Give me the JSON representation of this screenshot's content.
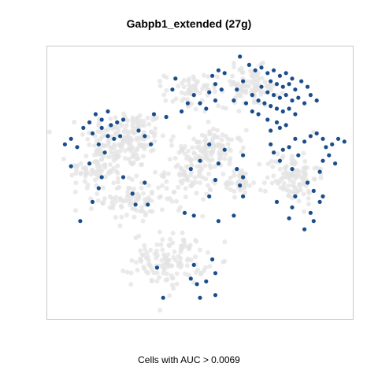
{
  "chart_data": {
    "type": "scatter",
    "title": "Gabpb1_extended (27g)",
    "xlabel": "Cells with AUC > 0.0069",
    "ylabel": "",
    "grid": false,
    "xlim": [
      0,
      100
    ],
    "ylim": [
      0,
      100
    ],
    "background_color": "#e3e3e3",
    "highlight_color": "#1a4e8a",
    "series": [
      {
        "role": "background",
        "clusters": [
          {
            "cx": 26,
            "cy": 66,
            "sx": 11,
            "sy": 9,
            "n": 170
          },
          {
            "cx": 16,
            "cy": 55,
            "sx": 7,
            "sy": 6,
            "n": 70
          },
          {
            "cx": 28,
            "cy": 44,
            "sx": 9,
            "sy": 7,
            "n": 90
          },
          {
            "cx": 47,
            "cy": 55,
            "sx": 7,
            "sy": 10,
            "n": 110
          },
          {
            "cx": 56,
            "cy": 62,
            "sx": 7,
            "sy": 6,
            "n": 70
          },
          {
            "cx": 40,
            "cy": 22,
            "sx": 10,
            "sy": 8,
            "n": 130
          },
          {
            "cx": 47,
            "cy": 83,
            "sx": 7,
            "sy": 6,
            "n": 60
          },
          {
            "cx": 66,
            "cy": 85,
            "sx": 8,
            "sy": 6,
            "n": 90
          },
          {
            "cx": 80,
            "cy": 52,
            "sx": 7,
            "sy": 8,
            "n": 110
          },
          {
            "cx": 63,
            "cy": 50,
            "sx": 4,
            "sy": 4,
            "n": 35
          }
        ]
      },
      {
        "role": "highlighted",
        "points": [
          [
            63,
            96
          ],
          [
            66,
            93
          ],
          [
            68,
            91
          ],
          [
            70,
            92
          ],
          [
            72,
            90
          ],
          [
            74,
            91
          ],
          [
            76,
            89
          ],
          [
            78,
            90
          ],
          [
            80,
            88
          ],
          [
            73,
            87
          ],
          [
            75,
            86
          ],
          [
            77,
            85
          ],
          [
            79,
            86
          ],
          [
            81,
            84
          ],
          [
            83,
            87
          ],
          [
            85,
            85
          ],
          [
            70,
            85
          ],
          [
            72,
            83
          ],
          [
            74,
            82
          ],
          [
            76,
            81
          ],
          [
            78,
            82
          ],
          [
            80,
            80
          ],
          [
            82,
            81
          ],
          [
            84,
            79
          ],
          [
            86,
            82
          ],
          [
            88,
            80
          ],
          [
            67,
            82
          ],
          [
            69,
            80
          ],
          [
            71,
            79
          ],
          [
            73,
            78
          ],
          [
            75,
            77
          ],
          [
            77,
            76
          ],
          [
            79,
            77
          ],
          [
            81,
            75
          ],
          [
            69,
            75
          ],
          [
            72,
            73
          ],
          [
            75,
            72
          ],
          [
            78,
            71
          ],
          [
            76,
            70
          ],
          [
            64,
            87
          ],
          [
            62,
            84
          ],
          [
            65,
            79
          ],
          [
            61,
            80
          ],
          [
            67,
            76
          ],
          [
            73,
            69
          ],
          [
            56,
            91
          ],
          [
            54,
            89
          ],
          [
            55,
            86
          ],
          [
            58,
            90
          ],
          [
            57,
            84
          ],
          [
            53,
            83
          ],
          [
            55,
            80
          ],
          [
            50,
            79
          ],
          [
            52,
            77
          ],
          [
            42,
            88
          ],
          [
            41,
            84
          ],
          [
            46,
            79
          ],
          [
            44,
            76
          ],
          [
            48,
            82
          ],
          [
            35,
            75
          ],
          [
            30,
            69
          ],
          [
            32,
            67
          ],
          [
            34,
            64
          ],
          [
            20,
            76
          ],
          [
            18,
            73
          ],
          [
            16,
            75
          ],
          [
            14,
            72
          ],
          [
            12,
            70
          ],
          [
            15,
            68
          ],
          [
            18,
            70
          ],
          [
            20,
            67
          ],
          [
            22,
            66
          ],
          [
            24,
            67
          ],
          [
            17,
            64
          ],
          [
            6,
            64
          ],
          [
            8,
            66
          ],
          [
            10,
            63
          ],
          [
            23,
            72
          ],
          [
            25,
            73
          ],
          [
            21,
            71
          ],
          [
            19,
            61
          ],
          [
            14,
            57
          ],
          [
            8,
            56
          ],
          [
            18,
            52
          ],
          [
            17,
            48
          ],
          [
            15,
            43
          ],
          [
            11,
            36
          ],
          [
            25,
            52
          ],
          [
            28,
            46
          ],
          [
            29,
            42
          ],
          [
            33,
            42
          ],
          [
            32,
            50
          ],
          [
            39,
            74
          ],
          [
            53,
            64
          ],
          [
            50,
            58
          ],
          [
            47,
            55
          ],
          [
            48,
            38
          ],
          [
            45,
            39
          ],
          [
            53,
            45
          ],
          [
            55,
            51
          ],
          [
            56,
            57
          ],
          [
            62,
            55
          ],
          [
            64,
            52
          ],
          [
            63,
            49
          ],
          [
            64,
            45
          ],
          [
            58,
            62
          ],
          [
            64,
            60
          ],
          [
            56,
            36
          ],
          [
            61,
            38
          ],
          [
            73,
            64
          ],
          [
            74,
            61
          ],
          [
            76,
            58
          ],
          [
            77,
            62
          ],
          [
            79,
            63
          ],
          [
            80,
            55
          ],
          [
            82,
            60
          ],
          [
            81,
            66
          ],
          [
            84,
            65
          ],
          [
            86,
            67
          ],
          [
            88,
            68
          ],
          [
            90,
            66
          ],
          [
            91,
            63
          ],
          [
            93,
            64
          ],
          [
            95,
            66
          ],
          [
            97,
            65
          ],
          [
            92,
            60
          ],
          [
            90,
            58
          ],
          [
            94,
            57
          ],
          [
            89,
            54
          ],
          [
            85,
            50
          ],
          [
            87,
            47
          ],
          [
            90,
            45
          ],
          [
            86,
            39
          ],
          [
            80,
            41
          ],
          [
            75,
            43
          ],
          [
            79,
            37
          ],
          [
            84,
            33
          ],
          [
            87,
            36
          ],
          [
            89,
            43
          ],
          [
            81,
            45
          ],
          [
            38,
            8
          ],
          [
            48,
            20
          ],
          [
            47,
            15
          ],
          [
            49,
            13
          ],
          [
            52,
            14
          ],
          [
            54,
            22
          ],
          [
            55,
            17
          ],
          [
            55,
            9
          ],
          [
            36,
            19
          ],
          [
            50,
            8
          ]
        ]
      }
    ]
  }
}
